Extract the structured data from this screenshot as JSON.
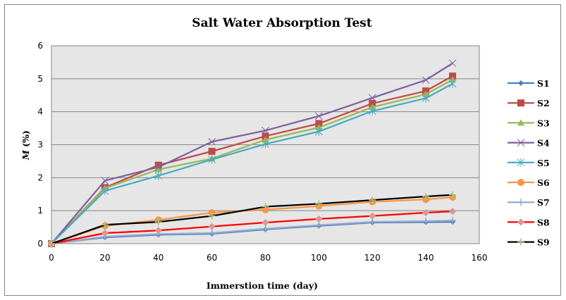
{
  "chart_data": {
    "type": "line",
    "title": "Salt Water Absorption Test",
    "xlabel": "Immerstion time (day)",
    "ylabel_italic": "M",
    "ylabel_rest": " (%)",
    "ylabel": "M (%)",
    "xlim": [
      0,
      160
    ],
    "ylim": [
      0,
      6
    ],
    "xticks": [
      0,
      20,
      40,
      60,
      80,
      100,
      120,
      140,
      160
    ],
    "yticks": [
      0,
      1,
      2,
      3,
      4,
      5,
      6
    ],
    "grid": "horizontal",
    "legend_position": "right",
    "x": [
      0,
      20,
      40,
      60,
      80,
      100,
      120,
      140,
      150
    ],
    "series": [
      {
        "name": "S1",
        "color": "#4A7EBB",
        "marker": "diamond",
        "values": [
          0,
          0.19,
          0.27,
          0.3,
          0.43,
          0.54,
          0.64,
          0.65,
          0.66
        ]
      },
      {
        "name": "S2",
        "color": "#BE4B48",
        "marker": "square",
        "values": [
          0,
          1.7,
          2.38,
          2.8,
          3.26,
          3.64,
          4.25,
          4.63,
          5.08
        ]
      },
      {
        "name": "S3",
        "color": "#98B954",
        "marker": "triangle",
        "values": [
          0,
          1.68,
          2.25,
          2.58,
          3.15,
          3.52,
          4.14,
          4.53,
          4.97
        ]
      },
      {
        "name": "S4",
        "color": "#7D60A0",
        "marker": "x",
        "values": [
          0,
          1.91,
          2.32,
          3.09,
          3.43,
          3.87,
          4.42,
          4.96,
          5.47
        ]
      },
      {
        "name": "S5",
        "color": "#46AAC5",
        "marker": "star",
        "values": [
          0,
          1.6,
          2.06,
          2.55,
          3.02,
          3.4,
          4.02,
          4.41,
          4.85
        ]
      },
      {
        "name": "S6",
        "color": "#F79646",
        "marker": "circle",
        "values": [
          0,
          0.54,
          0.72,
          0.94,
          1.03,
          1.14,
          1.27,
          1.34,
          1.41
        ]
      },
      {
        "name": "S7",
        "color": "#92A9CF",
        "marker": "plus",
        "values": [
          0,
          0.21,
          0.29,
          0.32,
          0.45,
          0.56,
          0.66,
          0.68,
          0.7
        ]
      },
      {
        "name": "S8",
        "color": "#FF0000",
        "marker": "diamond-pink",
        "marker_color": "#D99694",
        "values": [
          0,
          0.32,
          0.4,
          0.52,
          0.64,
          0.75,
          0.84,
          0.94,
          0.98
        ]
      },
      {
        "name": "S9",
        "color": "#000000",
        "marker": "plus-green",
        "marker_color": "#A9C47F",
        "values": [
          0,
          0.57,
          0.66,
          0.84,
          1.12,
          1.21,
          1.32,
          1.43,
          1.48
        ]
      }
    ]
  }
}
